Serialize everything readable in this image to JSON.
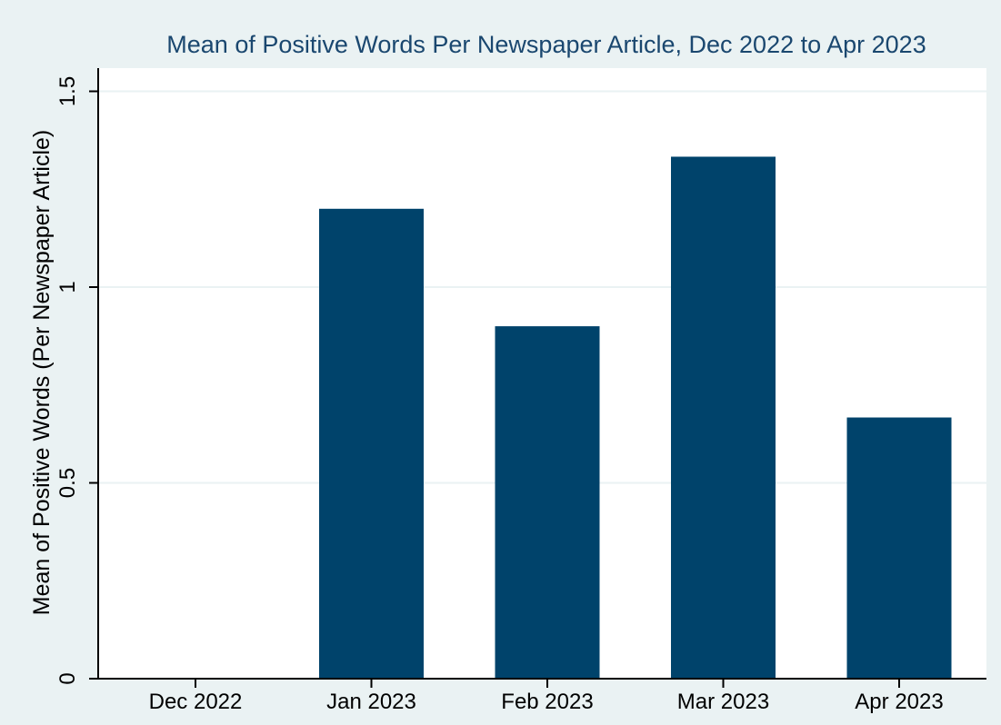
{
  "chart_data": {
    "type": "bar",
    "title": "Mean of Positive Words Per Newspaper Article, Dec 2022 to Apr 2023",
    "xlabel": "",
    "ylabel": "Mean of Positive Words (Per Newspaper Article)",
    "categories": [
      "Dec 2022",
      "Jan 2023",
      "Feb 2023",
      "Mar 2023",
      "Apr 2023"
    ],
    "values": [
      0,
      1.2,
      0.9,
      1.333,
      0.667
    ],
    "ylim": [
      0,
      1.5
    ],
    "yticks": [
      0,
      0.5,
      1,
      1.5
    ],
    "ytick_labels": [
      "0",
      "0.5",
      "1",
      "1.5"
    ],
    "grid": true,
    "legend": "none",
    "colors": {
      "bar": "#00436b",
      "title": "#1a476f",
      "outer_background": "#eaf2f3",
      "plot_background": "#ffffff",
      "grid": "#eaf2f3"
    }
  }
}
